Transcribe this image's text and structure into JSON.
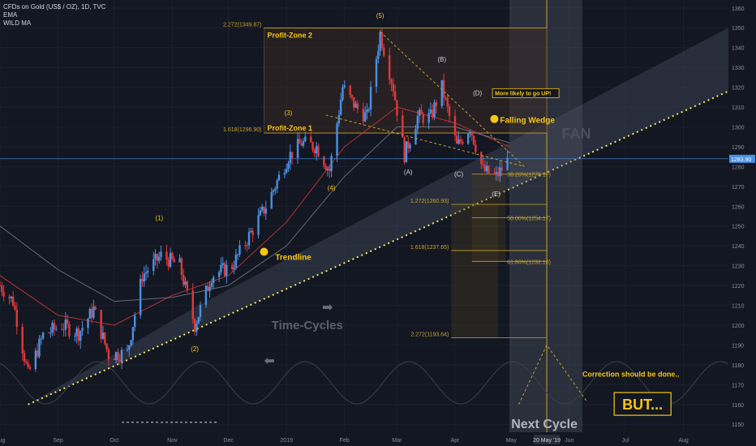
{
  "legend": {
    "symbol": "CFDs on Gold (US$ / OZ), 1D, TVC",
    "ema": "EMA",
    "wild_ma": "WILD MA"
  },
  "colors": {
    "background": "#131722",
    "up": "#4a90e2",
    "down": "#e0383a",
    "gold": "#f5c518",
    "fib_line": "#c9a227",
    "zone_fill": "#3a2a24",
    "cycle_band": "#555b6e",
    "text_muted": "#8a8f9c"
  },
  "chart_data": {
    "type": "candlestick",
    "title": "CFDs on Gold (US$ / OZ), 1D, TVC",
    "y_axis": {
      "range": [
        1146,
        1364
      ],
      "ticks": [
        1150,
        1160,
        1170,
        1180,
        1190,
        1200,
        1210,
        1220,
        1230,
        1240,
        1250,
        1260,
        1270,
        1280,
        1290,
        1300,
        1310,
        1320,
        1330,
        1340,
        1350,
        1360
      ],
      "current_price_label": "1283.90",
      "current_price": 1283.9
    },
    "x_axis": {
      "range": [
        "2018-08-01",
        "2019-08-25"
      ],
      "ticks": [
        {
          "label": "Aug",
          "date": "2018-08-01"
        },
        {
          "label": "Sep",
          "date": "2018-09-01"
        },
        {
          "label": "Oct",
          "date": "2018-10-01"
        },
        {
          "label": "Nov",
          "date": "2018-11-01"
        },
        {
          "label": "Dec",
          "date": "2018-12-01"
        },
        {
          "label": "2019",
          "date": "2019-01-01"
        },
        {
          "label": "Feb",
          "date": "2019-02-01"
        },
        {
          "label": "Mar",
          "date": "2019-03-01"
        },
        {
          "label": "Apr",
          "date": "2019-04-01"
        },
        {
          "label": "May",
          "date": "2019-05-01"
        },
        {
          "label": "Jun",
          "date": "2019-06-01"
        },
        {
          "label": "Jul",
          "date": "2019-07-01"
        },
        {
          "label": "Aug",
          "date": "2019-08-01"
        }
      ],
      "highlight_label": "20 May '19",
      "highlight_date": "2019-05-20"
    },
    "price_path": [
      {
        "date": "2018-08-01",
        "price": 1220
      },
      {
        "date": "2018-08-08",
        "price": 1212
      },
      {
        "date": "2018-08-16",
        "price": 1175
      },
      {
        "date": "2018-08-24",
        "price": 1195
      },
      {
        "date": "2018-09-03",
        "price": 1200
      },
      {
        "date": "2018-09-12",
        "price": 1196
      },
      {
        "date": "2018-09-20",
        "price": 1208
      },
      {
        "date": "2018-09-28",
        "price": 1185
      },
      {
        "date": "2018-10-08",
        "price": 1186
      },
      {
        "date": "2018-10-16",
        "price": 1225
      },
      {
        "date": "2018-10-26",
        "price": 1235
      },
      {
        "date": "2018-11-05",
        "price": 1230
      },
      {
        "date": "2018-11-13",
        "price": 1200
      },
      {
        "date": "2018-11-22",
        "price": 1225
      },
      {
        "date": "2018-12-03",
        "price": 1230
      },
      {
        "date": "2018-12-12",
        "price": 1245
      },
      {
        "date": "2018-12-21",
        "price": 1260
      },
      {
        "date": "2019-01-02",
        "price": 1285
      },
      {
        "date": "2019-01-09",
        "price": 1292
      },
      {
        "date": "2019-01-17",
        "price": 1290
      },
      {
        "date": "2019-01-24",
        "price": 1278
      },
      {
        "date": "2019-01-31",
        "price": 1320
      },
      {
        "date": "2019-02-07",
        "price": 1310
      },
      {
        "date": "2019-02-13",
        "price": 1305
      },
      {
        "date": "2019-02-20",
        "price": 1347
      },
      {
        "date": "2019-02-27",
        "price": 1320
      },
      {
        "date": "2019-03-05",
        "price": 1286
      },
      {
        "date": "2019-03-12",
        "price": 1305
      },
      {
        "date": "2019-03-19",
        "price": 1305
      },
      {
        "date": "2019-03-25",
        "price": 1320
      },
      {
        "date": "2019-04-02",
        "price": 1290
      },
      {
        "date": "2019-04-09",
        "price": 1300
      },
      {
        "date": "2019-04-16",
        "price": 1278
      },
      {
        "date": "2019-04-23",
        "price": 1275
      },
      {
        "date": "2019-04-30",
        "price": 1284
      }
    ],
    "moving_averages": [
      {
        "name": "EMA",
        "color": "#e0383a",
        "points": [
          [
            "2018-08-01",
            1225
          ],
          [
            "2018-09-01",
            1205
          ],
          [
            "2018-10-01",
            1200
          ],
          [
            "2018-11-01",
            1215
          ],
          [
            "2018-12-01",
            1225
          ],
          [
            "2019-01-01",
            1252
          ],
          [
            "2019-02-01",
            1290
          ],
          [
            "2019-03-01",
            1310
          ],
          [
            "2019-04-01",
            1302
          ],
          [
            "2019-04-30",
            1290
          ]
        ]
      },
      {
        "name": "WILD MA",
        "color": "#7a7f8c",
        "points": [
          [
            "2018-08-01",
            1250
          ],
          [
            "2018-09-01",
            1228
          ],
          [
            "2018-10-01",
            1212
          ],
          [
            "2018-11-01",
            1214
          ],
          [
            "2018-12-01",
            1220
          ],
          [
            "2019-01-01",
            1240
          ],
          [
            "2019-02-01",
            1275
          ],
          [
            "2019-03-01",
            1300
          ],
          [
            "2019-04-01",
            1300
          ],
          [
            "2019-04-30",
            1292
          ]
        ]
      }
    ],
    "fib_extensions": [
      {
        "label": "2.272(1349.87)",
        "value": 1349.87
      },
      {
        "label": "1.618(1296.90)",
        "value": 1296.9
      },
      {
        "label": "1.272(1260.93)",
        "value": 1260.93
      },
      {
        "label": "1.618(1237.65)",
        "value": 1237.65
      },
      {
        "label": "2.272(1193.64)",
        "value": 1193.64
      }
    ],
    "fib_retracements": [
      {
        "label": "38.20%(1276.17)",
        "value": 1276.17
      },
      {
        "label": "50.00%(1254.17)",
        "value": 1254.17
      },
      {
        "label": "61.80%(1232.18)",
        "value": 1232.18
      }
    ],
    "zones": [
      {
        "label": "Profit-Zone 2",
        "from": 1296.9,
        "to": 1349.87
      },
      {
        "label": "Profit-Zone 1",
        "from": 1296.9,
        "to": 1296.9
      }
    ],
    "wave_labels": [
      {
        "text": "(1)",
        "date": "2018-10-25",
        "price": 1253
      },
      {
        "text": "(2)",
        "date": "2018-11-13",
        "price": 1187
      },
      {
        "text": "(3)",
        "date": "2019-01-02",
        "price": 1306
      },
      {
        "text": "(4)",
        "date": "2019-01-25",
        "price": 1268
      },
      {
        "text": "(5)",
        "date": "2019-02-20",
        "price": 1355
      },
      {
        "text": "(A)",
        "date": "2019-03-07",
        "price": 1276
      },
      {
        "text": "(B)",
        "date": "2019-03-25",
        "price": 1333
      },
      {
        "text": "(C)",
        "date": "2019-04-03",
        "price": 1275
      },
      {
        "text": "(D)",
        "date": "2019-04-13",
        "price": 1316
      },
      {
        "text": "(E)",
        "date": "2019-04-23",
        "price": 1265
      }
    ],
    "annotations": {
      "trendline": "Trendline",
      "falling_wedge": "Falling Wedge",
      "more_likely": "More likely to go UP!",
      "fan": "FAN",
      "time_cycles": "Time-Cycles",
      "next_cycle": "Next Cycle",
      "correction": "Correction should be done..",
      "but": "BUT..."
    }
  }
}
